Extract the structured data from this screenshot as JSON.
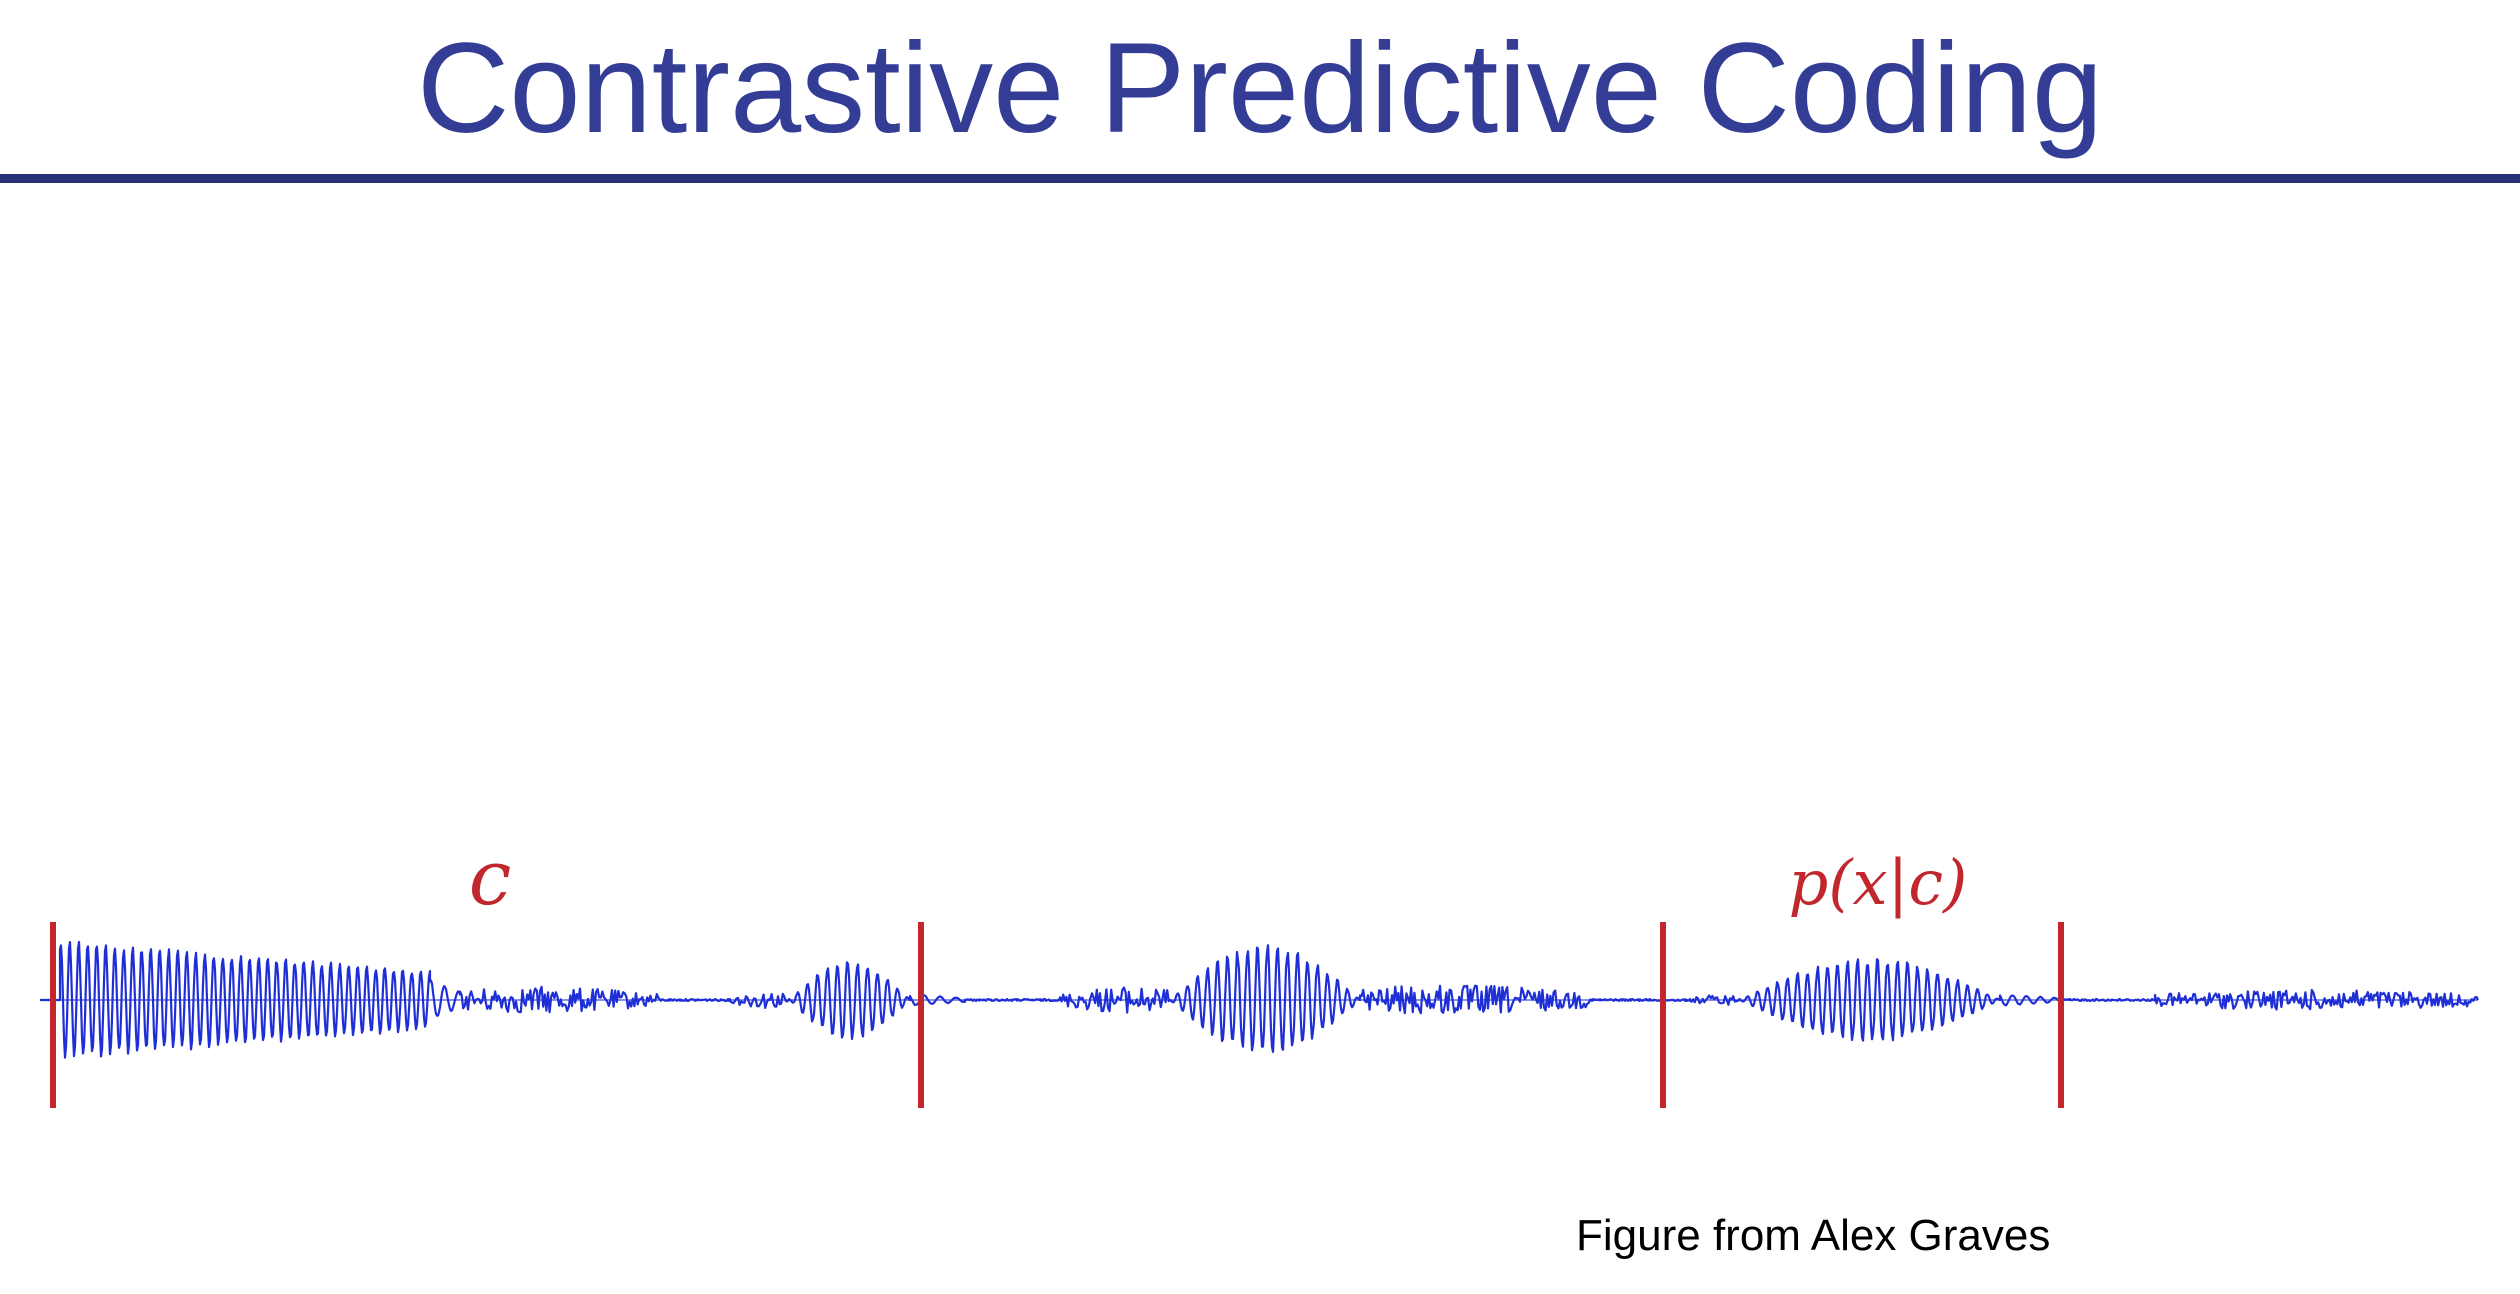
{
  "slide": {
    "title": "Contrastive Predictive Coding",
    "caption": "Figure from Alex Graves"
  },
  "figure": {
    "context_label": "c",
    "prediction_label": "p(x|c)",
    "colors": {
      "waveform": "#1f2fd6",
      "markers": "#c1272d",
      "title": "#343d96",
      "rule": "#2b3177"
    }
  }
}
